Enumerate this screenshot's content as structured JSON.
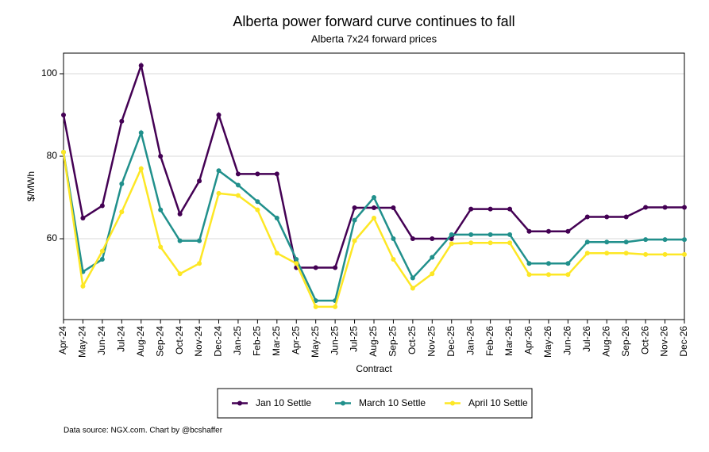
{
  "chart_data": {
    "type": "line",
    "title": "Alberta power forward curve continues to fall",
    "subtitle": "Alberta 7x24 forward prices",
    "x_label": "Contract",
    "y_label": "$/MWh",
    "source": "Data source: NGX.com. Chart by @bcshaffer",
    "categories": [
      "Apr-24",
      "May-24",
      "Jun-24",
      "Jul-24",
      "Aug-24",
      "Sep-24",
      "Oct-24",
      "Nov-24",
      "Dec-24",
      "Jan-25",
      "Feb-25",
      "Mar-25",
      "Apr-25",
      "May-25",
      "Jun-25",
      "Jul-25",
      "Aug-25",
      "Sep-25",
      "Oct-25",
      "Nov-25",
      "Dec-25",
      "Jan-26",
      "Feb-26",
      "Mar-26",
      "Apr-26",
      "May-26",
      "Jun-26",
      "Jul-26",
      "Aug-26",
      "Sep-26",
      "Oct-26",
      "Nov-26",
      "Dec-26"
    ],
    "series": [
      {
        "name": "Jan 10 Settle",
        "color": "#440154",
        "values": [
          90,
          65,
          68,
          88.5,
          102,
          80,
          66,
          74,
          90,
          75.7,
          75.7,
          75.7,
          53,
          53,
          53,
          67.5,
          67.5,
          67.5,
          60,
          60,
          60,
          67.2,
          67.2,
          67.2,
          61.8,
          61.8,
          61.8,
          65.3,
          65.3,
          65.3,
          67.6,
          67.6,
          67.6
        ]
      },
      {
        "name": "March 10 Settle",
        "color": "#21908c",
        "values": [
          81,
          52,
          55,
          73.3,
          85.7,
          67,
          59.5,
          59.5,
          76.5,
          73,
          69,
          65,
          55,
          45,
          45,
          64.5,
          70,
          60,
          50.5,
          55.5,
          61,
          61,
          61,
          61,
          54,
          54,
          54,
          59.2,
          59.2,
          59.2,
          59.8,
          59.8,
          59.8
        ]
      },
      {
        "name": "April 10 Settle",
        "color": "#fde725",
        "values": [
          81,
          48.5,
          57,
          66.5,
          77,
          58,
          51.5,
          54,
          71,
          70.5,
          67,
          56.5,
          54,
          43.5,
          43.5,
          59.5,
          65,
          55,
          48,
          51.5,
          58.8,
          59,
          59,
          59,
          51.3,
          51.3,
          51.3,
          56.5,
          56.5,
          56.5,
          56.2,
          56.2,
          56.2
        ]
      }
    ],
    "ylim": [
      40.4,
      105
    ],
    "yticks": [
      60,
      80,
      100
    ],
    "grid": true
  }
}
